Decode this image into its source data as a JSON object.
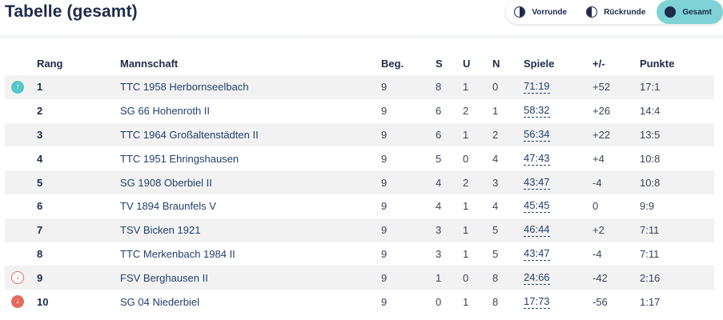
{
  "header": {
    "title": "Tabelle (gesamt)",
    "toggles": [
      {
        "label": "Vorrunde",
        "icon": "half-circle-right-icon",
        "active": false
      },
      {
        "label": "Rückrunde",
        "icon": "half-circle-left-icon",
        "active": false
      },
      {
        "label": "Gesamt",
        "icon": "full-circle-icon",
        "active": true
      }
    ]
  },
  "colors": {
    "accent": "#7fd3d6",
    "up": "#55c5c8",
    "down": "#e26b5e",
    "text": "#1e2a4a"
  },
  "table": {
    "columns": {
      "rang": "Rang",
      "team": "Mannschaft",
      "beg": "Beg.",
      "s": "S",
      "u": "U",
      "n": "N",
      "spiele": "Spiele",
      "diff": "+/-",
      "punkte": "Punkte"
    },
    "rows": [
      {
        "indicator": "up",
        "rang": "1",
        "team": "TTC 1958 Herbornseelbach",
        "beg": "9",
        "s": "8",
        "u": "1",
        "n": "0",
        "spiele": "71:19",
        "diff": "+52",
        "punkte": "17:1"
      },
      {
        "indicator": "",
        "rang": "2",
        "team": "SG 66 Hohenroth II",
        "beg": "9",
        "s": "6",
        "u": "2",
        "n": "1",
        "spiele": "58:32",
        "diff": "+26",
        "punkte": "14:4"
      },
      {
        "indicator": "",
        "rang": "3",
        "team": "TTC 1964 Großaltenstädten II",
        "beg": "9",
        "s": "6",
        "u": "1",
        "n": "2",
        "spiele": "56:34",
        "diff": "+22",
        "punkte": "13:5"
      },
      {
        "indicator": "",
        "rang": "4",
        "team": "TTC 1951 Ehringshausen",
        "beg": "9",
        "s": "5",
        "u": "0",
        "n": "4",
        "spiele": "47:43",
        "diff": "+4",
        "punkte": "10:8"
      },
      {
        "indicator": "",
        "rang": "5",
        "team": "SG 1908 Oberbiel II",
        "beg": "9",
        "s": "4",
        "u": "2",
        "n": "3",
        "spiele": "43:47",
        "diff": "-4",
        "punkte": "10:8"
      },
      {
        "indicator": "",
        "rang": "6",
        "team": "TV 1894 Braunfels V",
        "beg": "9",
        "s": "4",
        "u": "1",
        "n": "4",
        "spiele": "45:45",
        "diff": "0",
        "punkte": "9:9"
      },
      {
        "indicator": "",
        "rang": "7",
        "team": "TSV Bicken 1921",
        "beg": "9",
        "s": "3",
        "u": "1",
        "n": "5",
        "spiele": "46:44",
        "diff": "+2",
        "punkte": "7:11"
      },
      {
        "indicator": "",
        "rang": "8",
        "team": "TTC Merkenbach 1984 II",
        "beg": "9",
        "s": "3",
        "u": "1",
        "n": "5",
        "spiele": "43:47",
        "diff": "-4",
        "punkte": "7:11"
      },
      {
        "indicator": "down-outline",
        "rang": "9",
        "team": "FSV Berghausen II",
        "beg": "9",
        "s": "1",
        "u": "0",
        "n": "8",
        "spiele": "24:66",
        "diff": "-42",
        "punkte": "2:16"
      },
      {
        "indicator": "down",
        "rang": "10",
        "team": "SG 04 Niederbiel",
        "beg": "9",
        "s": "0",
        "u": "1",
        "n": "8",
        "spiele": "17:73",
        "diff": "-56",
        "punkte": "1:17"
      }
    ]
  }
}
